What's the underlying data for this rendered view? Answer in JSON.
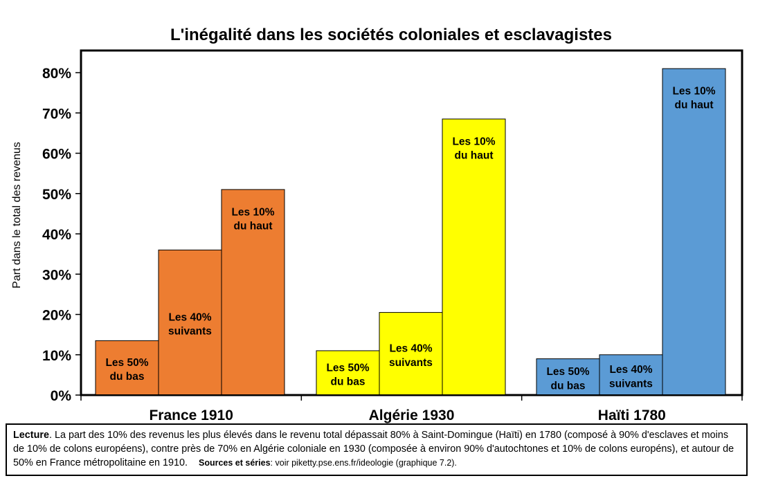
{
  "chart_data": {
    "type": "bar",
    "title": "L'inégalité dans les sociétés coloniales et esclavagistes",
    "xlabel": "",
    "ylabel": "Part dans le total des revenus",
    "ylim": [
      0,
      0.85
    ],
    "yticks": [
      0,
      0.1,
      0.2,
      0.3,
      0.4,
      0.5,
      0.6,
      0.7,
      0.8
    ],
    "ytick_labels": [
      "0%",
      "10%",
      "20%",
      "30%",
      "40%",
      "50%",
      "60%",
      "70%",
      "80%"
    ],
    "grid": false,
    "legend": "none",
    "groups": [
      {
        "name": "France 1910",
        "color": "#ED7D31",
        "bars": [
          {
            "label": [
              "Les 50%",
              "du bas"
            ],
            "value": 0.135
          },
          {
            "label": [
              "Les 40%",
              "suivants"
            ],
            "value": 0.36
          },
          {
            "label": [
              "Les 10%",
              "du haut"
            ],
            "value": 0.51
          }
        ]
      },
      {
        "name": "Algérie 1930",
        "color": "#FFFF00",
        "bars": [
          {
            "label": [
              "Les 50%",
              "du bas"
            ],
            "value": 0.11
          },
          {
            "label": [
              "Les 40%",
              "suivants"
            ],
            "value": 0.205
          },
          {
            "label": [
              "Les 10%",
              "du haut"
            ],
            "value": 0.685
          }
        ]
      },
      {
        "name": "Haïti 1780",
        "color": "#5B9BD5",
        "bars": [
          {
            "label": [
              "Les 50%",
              "du bas"
            ],
            "value": 0.09
          },
          {
            "label": [
              "Les 40%",
              "suivants"
            ],
            "value": 0.1
          },
          {
            "label": [
              "Les 10%",
              "du haut"
            ],
            "value": 0.81
          }
        ]
      }
    ]
  },
  "note": {
    "lecture_label": "Lecture",
    "lecture_text": ". La part des 10% des revenus les plus élevés dans le revenu total dépassait 80% à Saint-Domingue (Haïti) en 1780 (composé à 90% d'esclaves et moins de 10% de colons européens), contre près de 70% en Algérie coloniale en 1930 (composée à environ 90% d'autochtones et 10% de colons européns), et autour de 50% en France métropolitaine en 1910.",
    "sources_label": "Sources et séries",
    "sources_text": ": voir piketty.pse.ens.fr/ideologie (graphique 7.2)."
  }
}
